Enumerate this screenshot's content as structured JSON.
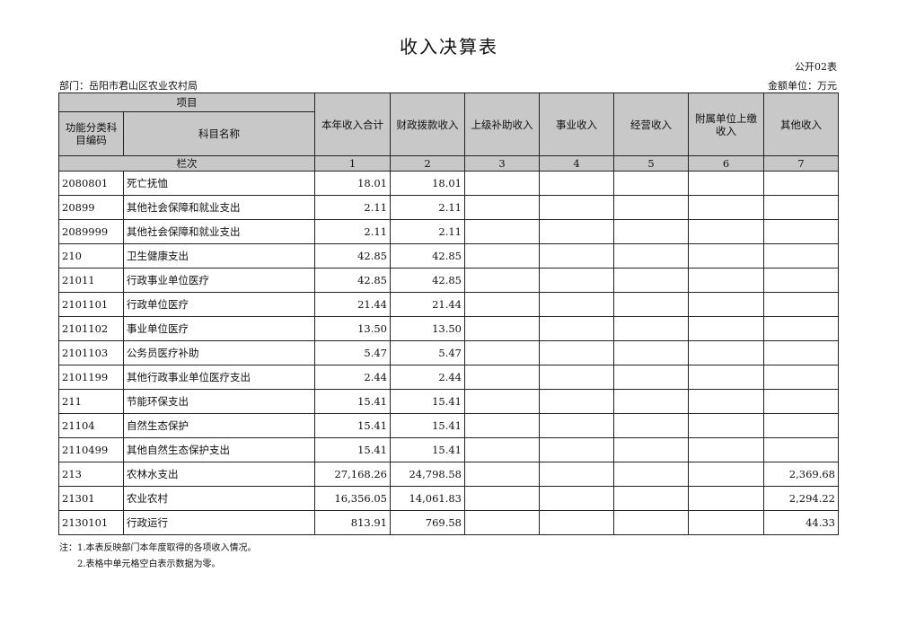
{
  "title": "收入决算表",
  "form_code": "公开02表",
  "department": "部门：岳阳市君山区农业农村局",
  "unit": "金额单位：万元",
  "header": {
    "item": "项目",
    "code": "功能分类科目编码",
    "name": "科目名称",
    "row_index_label": "栏次",
    "columns": [
      "本年收入合计",
      "财政拨款收入",
      "上级补助收入",
      "事业收入",
      "经营收入",
      "附属单位上缴收入",
      "其他收入"
    ],
    "column_numbers": [
      "1",
      "2",
      "3",
      "4",
      "5",
      "6",
      "7"
    ]
  },
  "rows": [
    {
      "code": "2080801",
      "name": "死亡抚恤",
      "c1": "18.01",
      "c2": "18.01",
      "c7": ""
    },
    {
      "code": "20899",
      "name": "其他社会保障和就业支出",
      "c1": "2.11",
      "c2": "2.11",
      "c7": ""
    },
    {
      "code": "2089999",
      "name": "其他社会保障和就业支出",
      "c1": "2.11",
      "c2": "2.11",
      "c7": ""
    },
    {
      "code": "210",
      "name": "卫生健康支出",
      "c1": "42.85",
      "c2": "42.85",
      "c7": ""
    },
    {
      "code": "21011",
      "name": "行政事业单位医疗",
      "c1": "42.85",
      "c2": "42.85",
      "c7": ""
    },
    {
      "code": "2101101",
      "name": "行政单位医疗",
      "c1": "21.44",
      "c2": "21.44",
      "c7": ""
    },
    {
      "code": "2101102",
      "name": "事业单位医疗",
      "c1": "13.50",
      "c2": "13.50",
      "c7": ""
    },
    {
      "code": "2101103",
      "name": "公务员医疗补助",
      "c1": "5.47",
      "c2": "5.47",
      "c7": ""
    },
    {
      "code": "2101199",
      "name": "其他行政事业单位医疗支出",
      "c1": "2.44",
      "c2": "2.44",
      "c7": ""
    },
    {
      "code": "211",
      "name": "节能环保支出",
      "c1": "15.41",
      "c2": "15.41",
      "c7": ""
    },
    {
      "code": "21104",
      "name": "自然生态保护",
      "c1": "15.41",
      "c2": "15.41",
      "c7": ""
    },
    {
      "code": "2110499",
      "name": "其他自然生态保护支出",
      "c1": "15.41",
      "c2": "15.41",
      "c7": ""
    },
    {
      "code": "213",
      "name": "农林水支出",
      "c1": "27,168.26",
      "c2": "24,798.58",
      "c7": "2,369.68"
    },
    {
      "code": "21301",
      "name": "农业农村",
      "c1": "16,356.05",
      "c2": "14,061.83",
      "c7": "2,294.22"
    },
    {
      "code": "2130101",
      "name": "行政运行",
      "c1": "813.91",
      "c2": "769.58",
      "c7": "44.33"
    }
  ],
  "notes": [
    "注：1.本表反映部门本年度取得的各项收入情况。",
    "2.表格中单元格空白表示数据为零。"
  ]
}
